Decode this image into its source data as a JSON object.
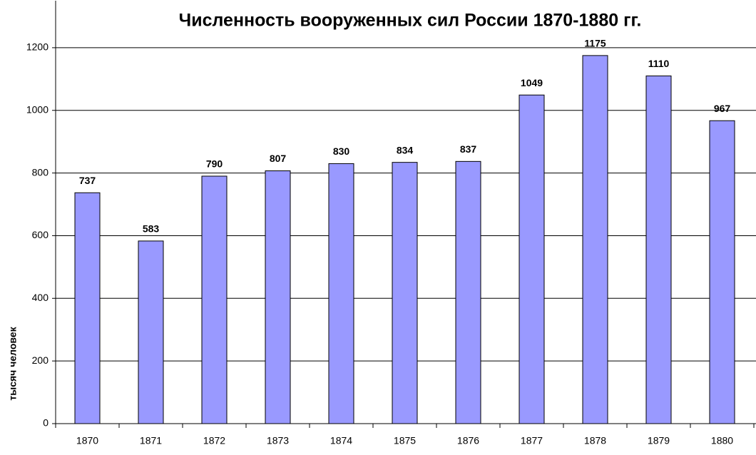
{
  "chart_data": {
    "type": "bar",
    "title": "Численность вооруженных сил России 1870-1880 гг.",
    "y_label": "тысяч человек",
    "categories": [
      "1870",
      "1871",
      "1872",
      "1873",
      "1874",
      "1875",
      "1876",
      "1877",
      "1878",
      "1879",
      "1880"
    ],
    "values": [
      737,
      583,
      790,
      807,
      830,
      834,
      837,
      1049,
      1175,
      1110,
      967
    ],
    "color": "#9999ff",
    "ylim": [
      0,
      1350
    ],
    "yticks": [
      0,
      200,
      400,
      600,
      800,
      1000,
      1200
    ],
    "grid": true
  }
}
